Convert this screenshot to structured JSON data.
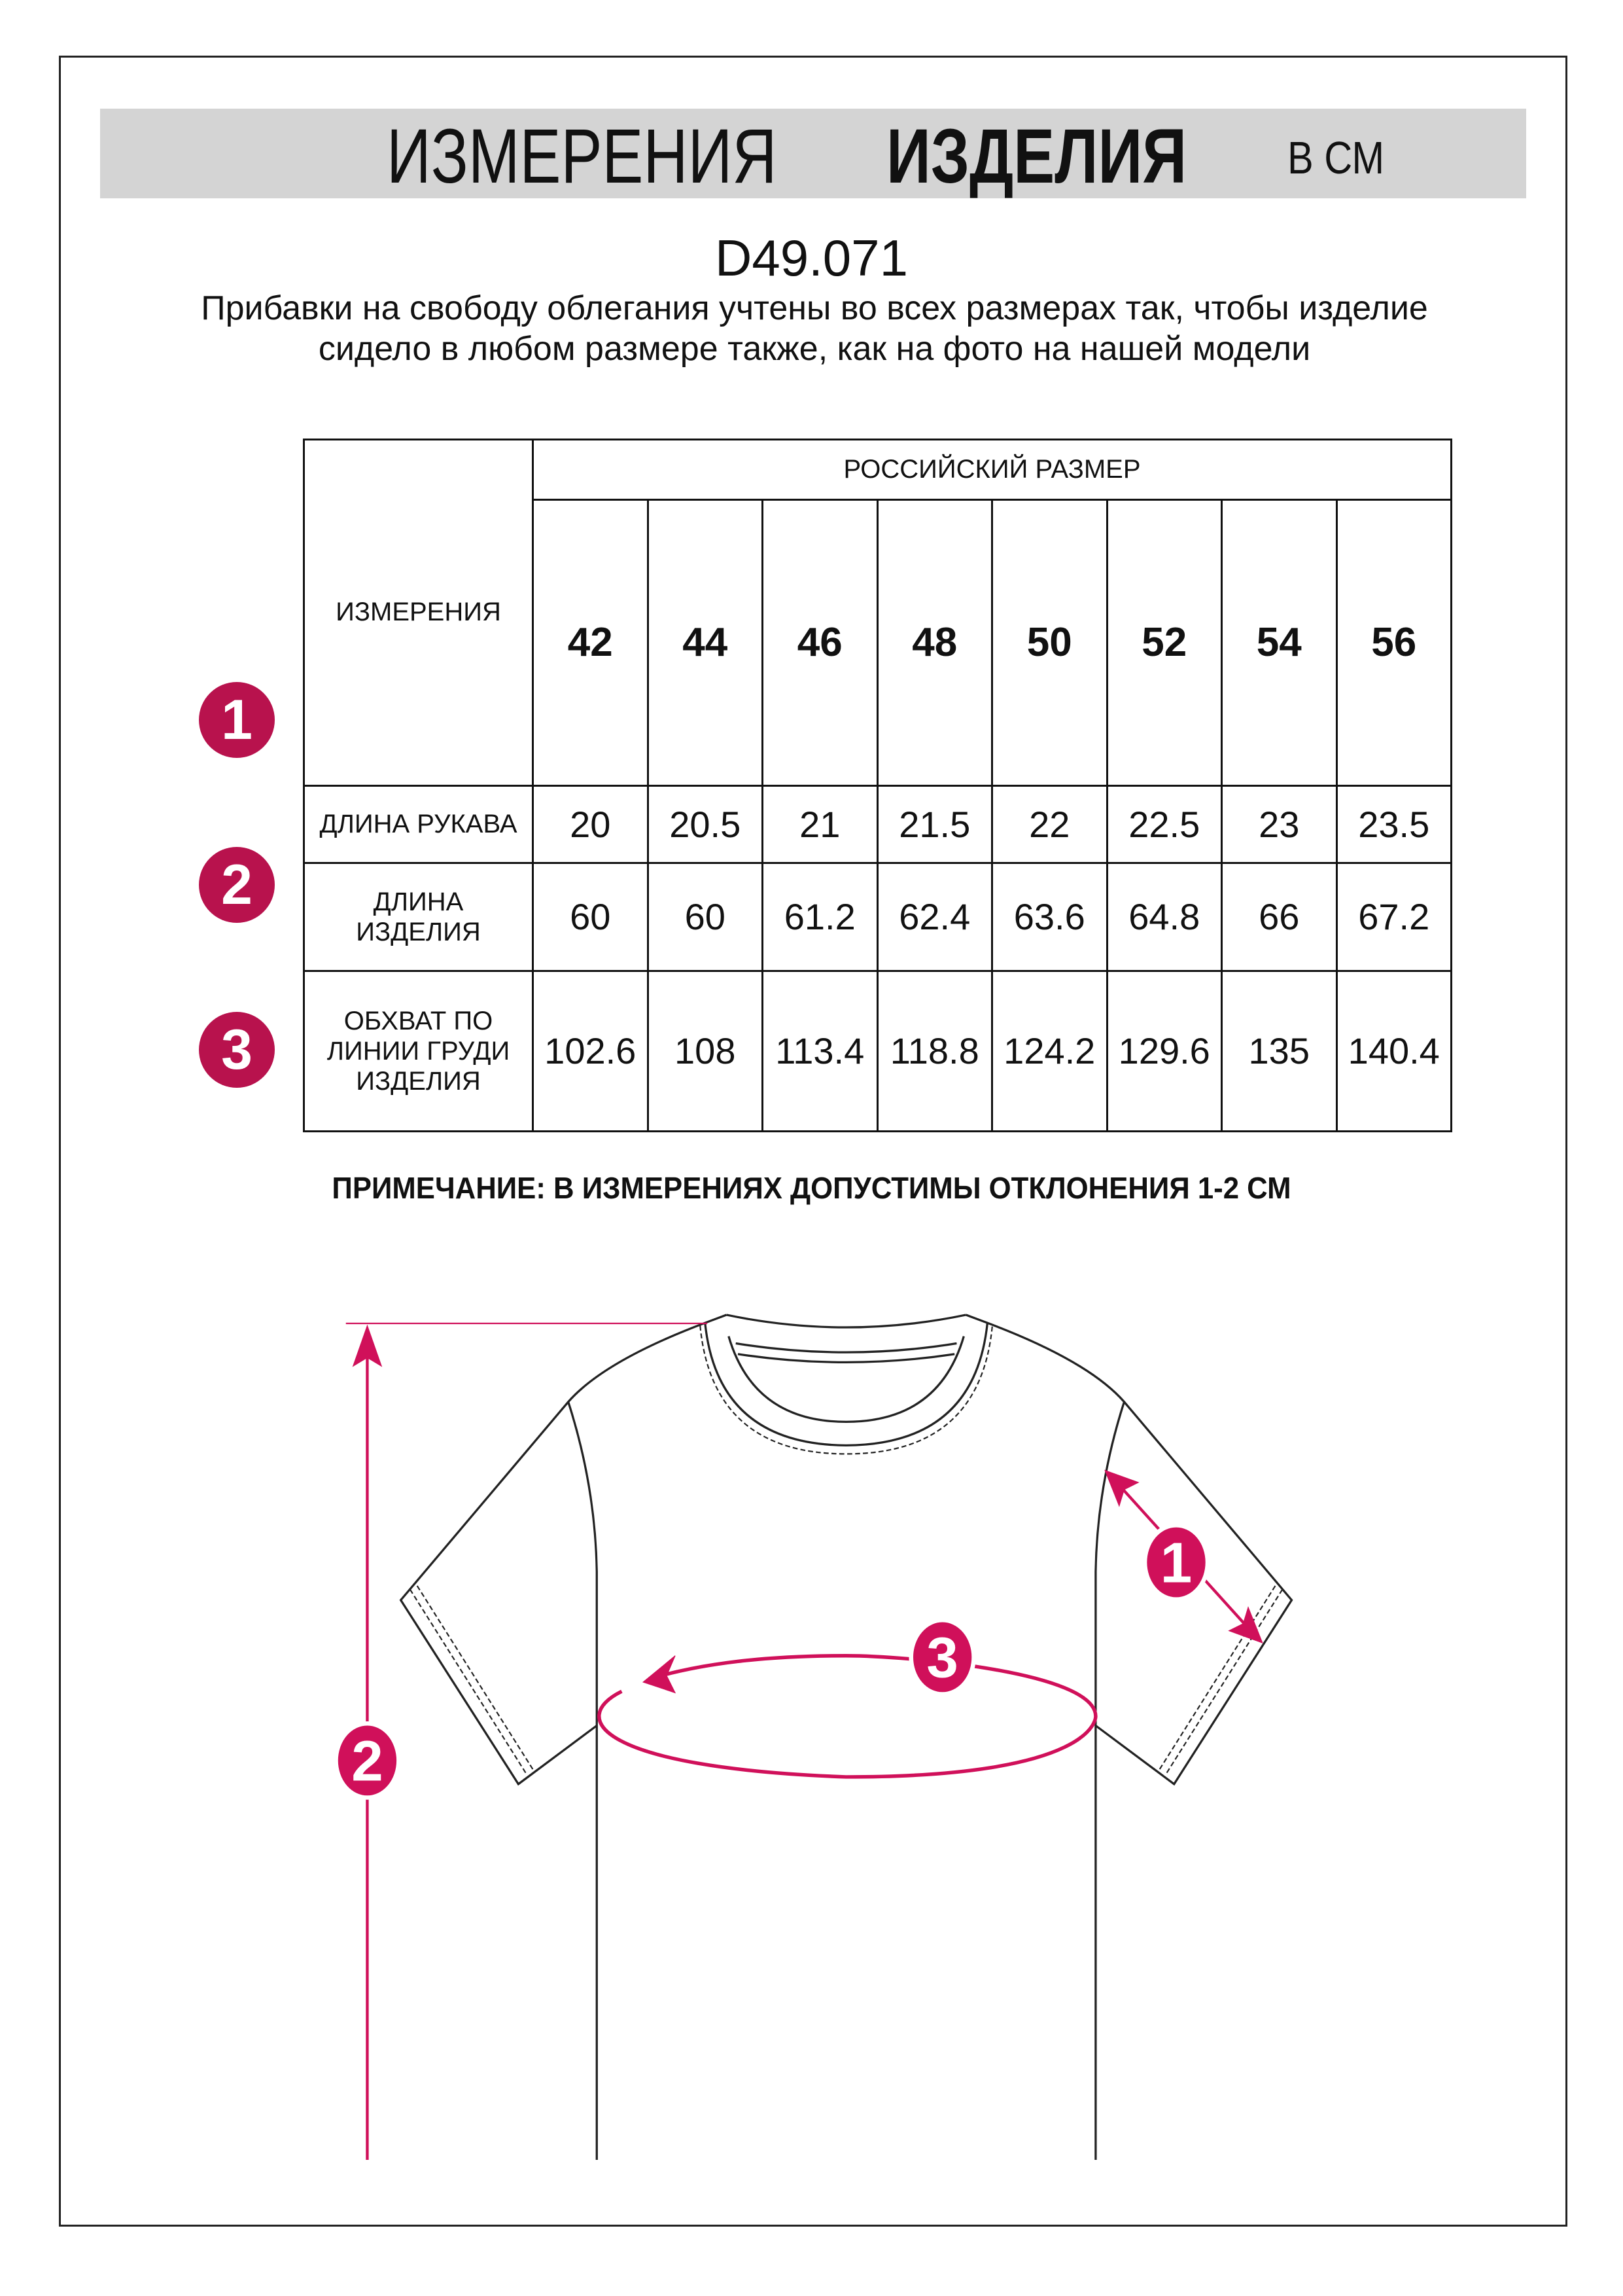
{
  "header": {
    "title_regular": "ИЗМЕРЕНИЯ",
    "title_bold": "ИЗДЕЛИЯ",
    "unit": "В СМ"
  },
  "article": "D49.071",
  "description": "Прибавки на свободу облегания учтены во всех размерах так, чтобы изделие сидело в любом размере также, как на фото на нашей модели",
  "table": {
    "measurements_header": "ИЗМЕРЕНИЯ",
    "size_group_header": "РОССИЙСКИЙ РАЗМЕР",
    "sizes": [
      "42",
      "44",
      "46",
      "48",
      "50",
      "52",
      "54",
      "56"
    ],
    "rows": [
      {
        "badge": "1",
        "label": "ДЛИНА РУКАВА",
        "values": [
          "20",
          "20.5",
          "21",
          "21.5",
          "22",
          "22.5",
          "23",
          "23.5"
        ]
      },
      {
        "badge": "2",
        "label": "ДЛИНА ИЗДЕЛИЯ",
        "values": [
          "60",
          "60",
          "61.2",
          "62.4",
          "63.6",
          "64.8",
          "66",
          "67.2"
        ]
      },
      {
        "badge": "3",
        "label": "ОБХВАТ ПО ЛИНИИ ГРУДИ ИЗДЕЛИЯ",
        "values": [
          "102.6",
          "108",
          "113.4",
          "118.8",
          "124.2",
          "129.6",
          "135",
          "140.4"
        ]
      }
    ]
  },
  "note": "ПРИМЕЧАНИЕ: В ИЗМЕРЕНИЯХ ДОПУСТИМЫ ОТКЛОНЕНИЯ 1-2 СМ",
  "diagram": {
    "markers": [
      "1",
      "2",
      "3"
    ]
  },
  "colors": {
    "accent": "#d0105a",
    "badge": "#b8124d",
    "header_band": "#d4d4d4"
  }
}
